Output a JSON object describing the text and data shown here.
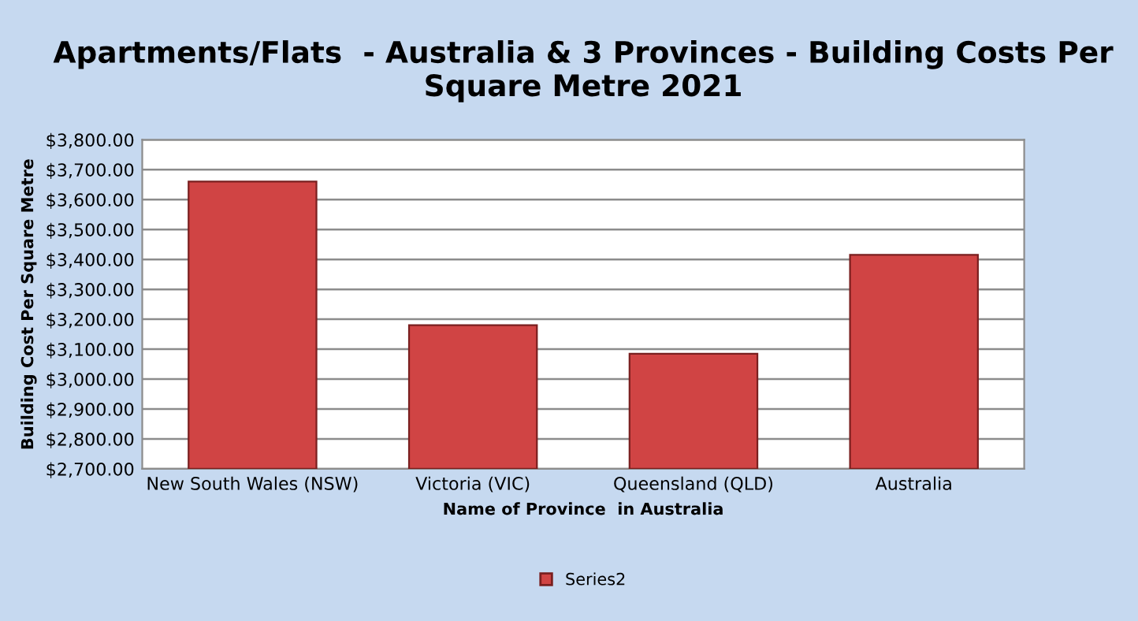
{
  "chart_data": {
    "type": "bar",
    "title": "Apartments/Flats  - Australia & 3 Provinces - Building Costs Per Square Metre 2021",
    "xlabel": "Name of Province  in Australia",
    "ylabel": "Building Cost Per Square Metre",
    "categories": [
      "New South Wales (NSW)",
      "Victoria (VIC)",
      "Queensland (QLD)",
      "Australia"
    ],
    "series": [
      {
        "name": "Series2",
        "color": "#d04444",
        "values": [
          3660,
          3180,
          3085,
          3415
        ]
      }
    ],
    "ylim": [
      2700,
      3800
    ],
    "yticks": [
      {
        "value": 2700,
        "label": "$2,700.00"
      },
      {
        "value": 2800,
        "label": "$2,800.00"
      },
      {
        "value": 2900,
        "label": "$2,900.00"
      },
      {
        "value": 3000,
        "label": "$3,000.00"
      },
      {
        "value": 3100,
        "label": "$3,100.00"
      },
      {
        "value": 3200,
        "label": "$3,200.00"
      },
      {
        "value": 3300,
        "label": "$3,300.00"
      },
      {
        "value": 3400,
        "label": "$3,400.00"
      },
      {
        "value": 3500,
        "label": "$3,500.00"
      },
      {
        "value": 3600,
        "label": "$3,600.00"
      },
      {
        "value": 3700,
        "label": "$3,700.00"
      },
      {
        "value": 3800,
        "label": "$3,800.00"
      }
    ],
    "grid": "y",
    "legend": "bottom"
  }
}
